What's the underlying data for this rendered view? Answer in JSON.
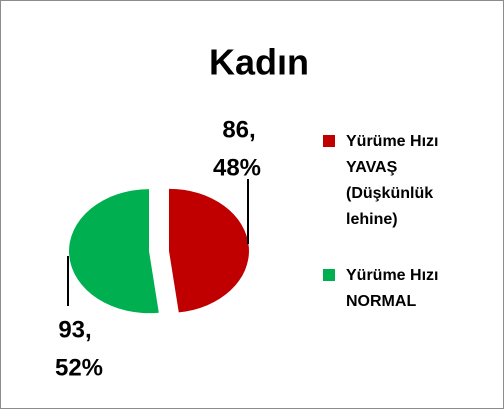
{
  "chart_data": {
    "type": "pie",
    "title": "Kadın",
    "categories": [
      "Yürüme Hızı YAVAŞ (Düşkünlük lehine)",
      "Yürüme Hızı NORMAL"
    ],
    "values": [
      86,
      93
    ],
    "value_labels": [
      "86,",
      "93,"
    ],
    "percents": [
      48,
      52
    ],
    "percent_labels": [
      "48%",
      "52%"
    ],
    "colors": [
      "#c00000",
      "#00b050"
    ],
    "legend": "right"
  }
}
